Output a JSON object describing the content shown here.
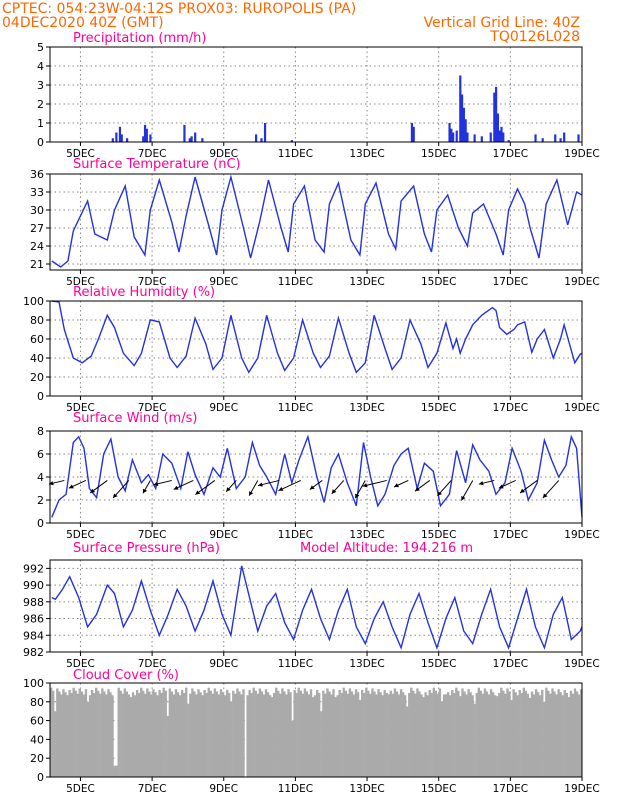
{
  "header": {
    "line1_left": "CPTEC:   054:23W-04:12S   PROX03: RUROPOLIS (PA)",
    "line2_left": "04DEC2020 40Z (GMT)",
    "line2_right": "Vertical Grid Line: 40Z",
    "line3_right": "TQ0126L028"
  },
  "colors": {
    "header": "#ff6600",
    "title": "#ff0099",
    "series": "#2233dd",
    "cloud": "#aaaaaa"
  },
  "x_axis": {
    "tick_labels": [
      "5DEC",
      "7DEC",
      "9DEC",
      "11DEC",
      "13DEC",
      "15DEC",
      "17DEC",
      "19DEC"
    ],
    "tick_days": [
      5,
      7,
      9,
      11,
      13,
      15,
      17,
      19
    ],
    "range_days": [
      4.15,
      19
    ]
  },
  "chart_data": [
    {
      "type": "bar",
      "title": "Precipitation (mm/h)",
      "ylim": [
        0,
        5
      ],
      "yticks": [
        0,
        1,
        2,
        3,
        4,
        5
      ],
      "x_days": [
        5.9,
        6.0,
        6.1,
        6.15,
        6.3,
        6.75,
        6.8,
        6.85,
        6.95,
        7.9,
        8.05,
        8.1,
        8.2,
        8.4,
        9.9,
        10.05,
        10.15,
        10.9,
        14.25,
        14.3,
        15.3,
        15.35,
        15.4,
        15.5,
        15.6,
        15.65,
        15.7,
        15.75,
        15.8,
        16.0,
        16.2,
        16.45,
        16.55,
        16.6,
        16.65,
        16.7,
        16.75,
        16.8,
        16.95,
        17.7,
        17.9,
        18.25,
        18.4,
        18.5,
        18.9
      ],
      "values": [
        0.2,
        0.5,
        0.8,
        0.4,
        0.2,
        0.3,
        0.9,
        0.7,
        0.4,
        0.9,
        0.2,
        0.3,
        0.5,
        0.2,
        0.4,
        0.2,
        1.0,
        0.1,
        1.0,
        0.8,
        1.0,
        0.7,
        0.5,
        0.6,
        3.5,
        2.5,
        1.8,
        1.2,
        0.5,
        0.4,
        0.3,
        0.5,
        2.6,
        2.9,
        1.5,
        0.6,
        0.8,
        0.5,
        0.1,
        0.4,
        0.2,
        0.4,
        0.2,
        0.5,
        0.4
      ]
    },
    {
      "type": "line",
      "title": "Surface Temperature (nC)",
      "ylim": [
        20,
        36
      ],
      "yticks": [
        21,
        24,
        27,
        30,
        33,
        36
      ],
      "x_days": [
        4.2,
        4.45,
        4.65,
        4.8,
        5.2,
        5.4,
        5.75,
        5.95,
        6.25,
        6.5,
        6.8,
        6.95,
        7.2,
        7.55,
        7.75,
        7.95,
        8.2,
        8.6,
        8.8,
        8.95,
        9.2,
        9.55,
        9.75,
        10.0,
        10.25,
        10.6,
        10.8,
        10.95,
        11.25,
        11.55,
        11.8,
        11.95,
        12.2,
        12.55,
        12.8,
        12.95,
        13.25,
        13.6,
        13.8,
        13.95,
        14.3,
        14.6,
        14.8,
        14.95,
        15.25,
        15.55,
        15.8,
        15.95,
        16.25,
        16.6,
        16.8,
        16.95,
        17.2,
        17.4,
        17.55,
        17.8,
        18.0,
        18.3,
        18.6,
        18.85,
        19.0
      ],
      "values": [
        21.5,
        20.5,
        21.5,
        26.5,
        31.5,
        26,
        25,
        30,
        34,
        25.5,
        22.5,
        30,
        35,
        28,
        23,
        29,
        35.5,
        27,
        22.5,
        30,
        35.5,
        27,
        22,
        28,
        35,
        27,
        23,
        31,
        34,
        25,
        23,
        31,
        34.5,
        25,
        22.5,
        31,
        34.5,
        26,
        23.5,
        31.5,
        34,
        26,
        23,
        30,
        32.5,
        27,
        24,
        29.5,
        31,
        26,
        22.5,
        30,
        33.5,
        31,
        27,
        22,
        31,
        35,
        27.5,
        33,
        32.5
      ]
    },
    {
      "type": "line",
      "title": "Relative Humidity (%)",
      "ylim": [
        0,
        100
      ],
      "yticks": [
        0,
        20,
        40,
        60,
        80,
        100
      ],
      "x_days": [
        4.2,
        4.4,
        4.55,
        4.8,
        5.05,
        5.3,
        5.5,
        5.75,
        5.95,
        6.2,
        6.5,
        6.7,
        6.95,
        7.2,
        7.5,
        7.7,
        7.95,
        8.2,
        8.5,
        8.7,
        8.95,
        9.2,
        9.5,
        9.7,
        9.95,
        10.2,
        10.5,
        10.7,
        10.95,
        11.2,
        11.5,
        11.7,
        11.95,
        12.2,
        12.5,
        12.7,
        12.95,
        13.2,
        13.5,
        13.7,
        13.95,
        14.2,
        14.5,
        14.7,
        14.95,
        15.2,
        15.4,
        15.5,
        15.6,
        15.75,
        15.95,
        16.2,
        16.5,
        16.6,
        16.7,
        16.9,
        17.1,
        17.2,
        17.4,
        17.6,
        17.75,
        17.95,
        18.2,
        18.4,
        18.5,
        18.8,
        18.95,
        19.0
      ],
      "values": [
        100,
        99,
        70,
        40,
        35,
        42,
        60,
        85,
        72,
        45,
        32,
        45,
        80,
        78,
        40,
        30,
        42,
        82,
        55,
        28,
        40,
        85,
        40,
        25,
        40,
        85,
        45,
        27,
        40,
        80,
        45,
        30,
        42,
        82,
        45,
        25,
        35,
        85,
        50,
        28,
        40,
        80,
        55,
        30,
        45,
        77,
        50,
        60,
        45,
        60,
        75,
        85,
        93,
        90,
        72,
        65,
        70,
        75,
        78,
        46,
        60,
        70,
        40,
        60,
        75,
        35,
        44,
        45
      ]
    },
    {
      "type": "line",
      "title": "Surface Wind (m/s)",
      "ylim": [
        0,
        8
      ],
      "yticks": [
        0,
        2,
        4,
        6,
        8
      ],
      "x_days": [
        4.2,
        4.4,
        4.6,
        4.8,
        4.95,
        5.1,
        5.25,
        5.45,
        5.65,
        5.85,
        6.05,
        6.25,
        6.45,
        6.7,
        6.9,
        7.1,
        7.3,
        7.55,
        7.8,
        8.0,
        8.2,
        8.45,
        8.7,
        8.9,
        9.1,
        9.35,
        9.6,
        9.8,
        10.0,
        10.2,
        10.45,
        10.7,
        10.9,
        11.1,
        11.35,
        11.6,
        11.8,
        12.0,
        12.2,
        12.45,
        12.7,
        12.9,
        13.1,
        13.3,
        13.5,
        13.75,
        13.95,
        14.15,
        14.4,
        14.6,
        14.85,
        15.05,
        15.3,
        15.5,
        15.75,
        15.95,
        16.15,
        16.4,
        16.6,
        16.85,
        17.05,
        17.3,
        17.5,
        17.75,
        17.95,
        18.15,
        18.35,
        18.55,
        18.7,
        18.85,
        19.0
      ],
      "values": [
        0.5,
        2.0,
        2.5,
        7.0,
        7.5,
        6.5,
        3.0,
        2.2,
        6.0,
        7.3,
        4.0,
        2.8,
        5.5,
        3.5,
        4.2,
        3.0,
        6.0,
        5.2,
        3.0,
        6.2,
        4.2,
        2.5,
        4.8,
        4.0,
        6.5,
        3.0,
        4.0,
        7.0,
        5.0,
        4.0,
        2.5,
        6.0,
        3.5,
        5.5,
        7.5,
        4.0,
        1.8,
        4.8,
        6.0,
        3.5,
        1.5,
        7.0,
        4.0,
        1.5,
        2.5,
        5.0,
        6.0,
        6.5,
        3.0,
        5.2,
        4.5,
        1.5,
        2.5,
        6.3,
        3.5,
        6.8,
        5.5,
        4.5,
        2.5,
        3.5,
        6.5,
        4.5,
        2.0,
        3.5,
        7.2,
        5.5,
        4.0,
        5.0,
        7.5,
        6.5,
        0.5
      ]
    },
    {
      "type": "line",
      "title": "Surface Pressure (hPa)",
      "annotation": "Model Altitude: 194.216 m",
      "ylim": [
        982,
        993
      ],
      "yticks": [
        982,
        984,
        986,
        988,
        990,
        992
      ],
      "x_days": [
        4.2,
        4.3,
        4.5,
        4.7,
        4.95,
        5.2,
        5.45,
        5.75,
        5.95,
        6.2,
        6.45,
        6.7,
        6.95,
        7.2,
        7.45,
        7.7,
        7.95,
        8.2,
        8.45,
        8.7,
        8.95,
        9.2,
        9.5,
        9.75,
        9.95,
        10.2,
        10.45,
        10.7,
        10.95,
        11.2,
        11.45,
        11.7,
        11.95,
        12.2,
        12.45,
        12.7,
        12.95,
        13.2,
        13.45,
        13.7,
        13.95,
        14.2,
        14.45,
        14.7,
        14.95,
        15.2,
        15.45,
        15.7,
        15.95,
        16.2,
        16.45,
        16.7,
        16.95,
        17.2,
        17.45,
        17.7,
        17.95,
        18.2,
        18.45,
        18.7,
        18.95,
        19.0
      ],
      "values": [
        988.5,
        988.3,
        989.5,
        991.0,
        988.5,
        985.0,
        986.5,
        990.0,
        989.0,
        985.0,
        987.0,
        990.5,
        987.0,
        984.0,
        986.5,
        989.5,
        987.5,
        984.5,
        987.0,
        990.5,
        986.5,
        984.0,
        992.3,
        988.0,
        984.5,
        987.5,
        989.0,
        985.5,
        983.5,
        987.0,
        989.5,
        986.0,
        983.5,
        987.0,
        989.5,
        985.0,
        983.0,
        986.0,
        988.0,
        985.0,
        982.5,
        986.5,
        989.0,
        985.5,
        982.5,
        986.0,
        988.5,
        984.5,
        983.0,
        986.5,
        989.5,
        985.0,
        982.5,
        986.0,
        989.5,
        985.0,
        982.5,
        986.5,
        988.5,
        983.5,
        984.5,
        985.0
      ]
    },
    {
      "type": "bar",
      "title": "Cloud Cover (%)",
      "ylim": [
        0,
        100
      ],
      "yticks": [
        0,
        20,
        40,
        60,
        80,
        100
      ],
      "baseline_value": 95,
      "dips_x_days": [
        4.25,
        5.2,
        5.95,
        6.4,
        7.4,
        8.0,
        9.15,
        9.55,
        10.3,
        10.9,
        11.45,
        11.7,
        12.1,
        12.8,
        13.6,
        14.1,
        14.55,
        15.05,
        15.2,
        15.6,
        16.0,
        16.6,
        17.0,
        17.5,
        17.9,
        18.6
      ],
      "dips_values": [
        70,
        80,
        12,
        85,
        65,
        78,
        80,
        0,
        85,
        60,
        85,
        70,
        85,
        82,
        88,
        75,
        85,
        80,
        88,
        86,
        78,
        86,
        82,
        84,
        80,
        85
      ]
    }
  ]
}
